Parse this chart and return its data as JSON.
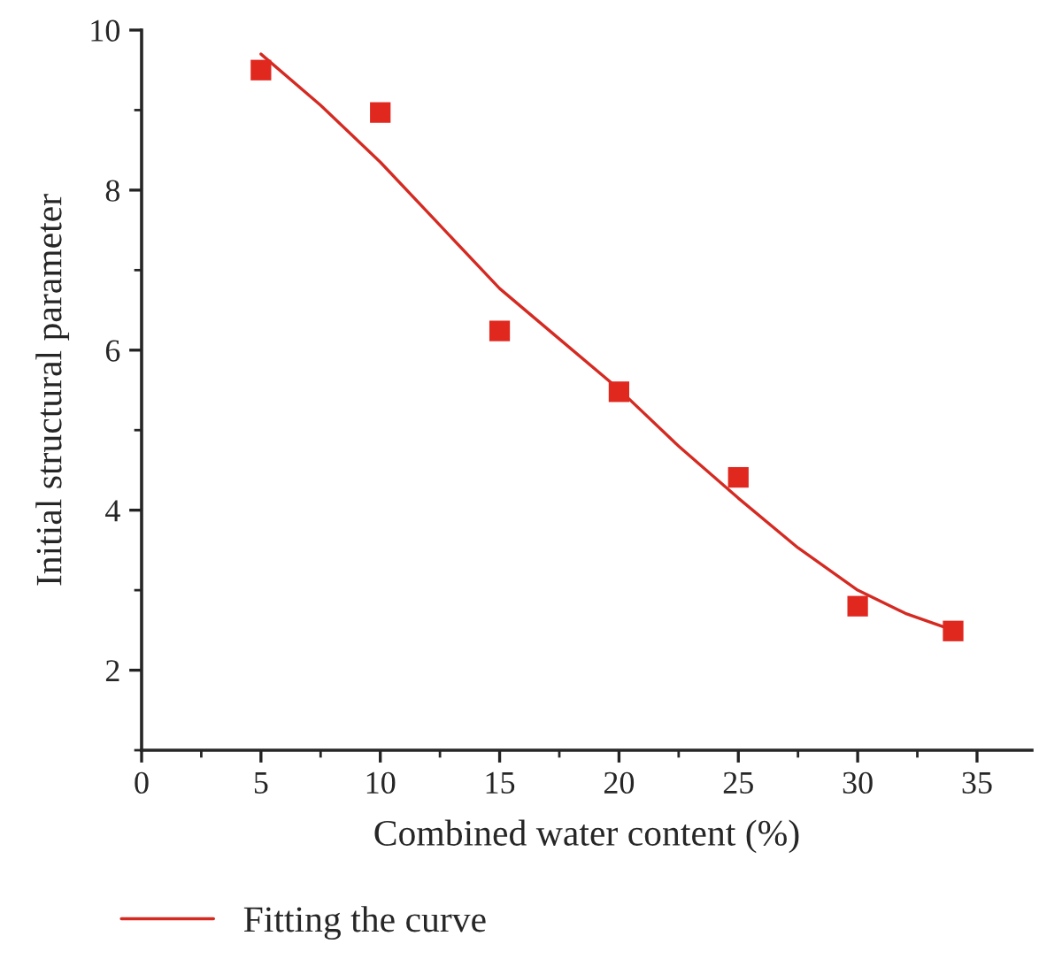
{
  "chart_data": {
    "type": "scatter",
    "xlabel": "Combined water content (%)",
    "ylabel": "Initial structural parameter",
    "xlim": [
      0,
      37.3
    ],
    "ylim": [
      1,
      10
    ],
    "xticks": [
      0,
      5,
      10,
      15,
      20,
      25,
      30,
      35
    ],
    "yticks": [
      2,
      4,
      6,
      8,
      10
    ],
    "grid": false,
    "legend": "bottom",
    "marker": "square",
    "series": [
      {
        "color": "#e0281f",
        "x": [
          5,
          10,
          15,
          20,
          25,
          30,
          34
        ],
        "values": [
          9.5,
          8.97,
          6.24,
          5.48,
          4.41,
          2.8,
          2.49
        ]
      },
      {
        "type": "line",
        "name": "Fitting the curve",
        "color": "#d42a22",
        "line_style": "solid",
        "marker": "none",
        "x": [
          5,
          7.5,
          10,
          12.5,
          15,
          17.5,
          20,
          22.5,
          25,
          27.5,
          30,
          32,
          34
        ],
        "values": [
          9.7,
          9.06,
          8.35,
          7.56,
          6.77,
          6.14,
          5.51,
          4.8,
          4.15,
          3.53,
          3.0,
          2.71,
          2.5
        ]
      }
    ]
  }
}
